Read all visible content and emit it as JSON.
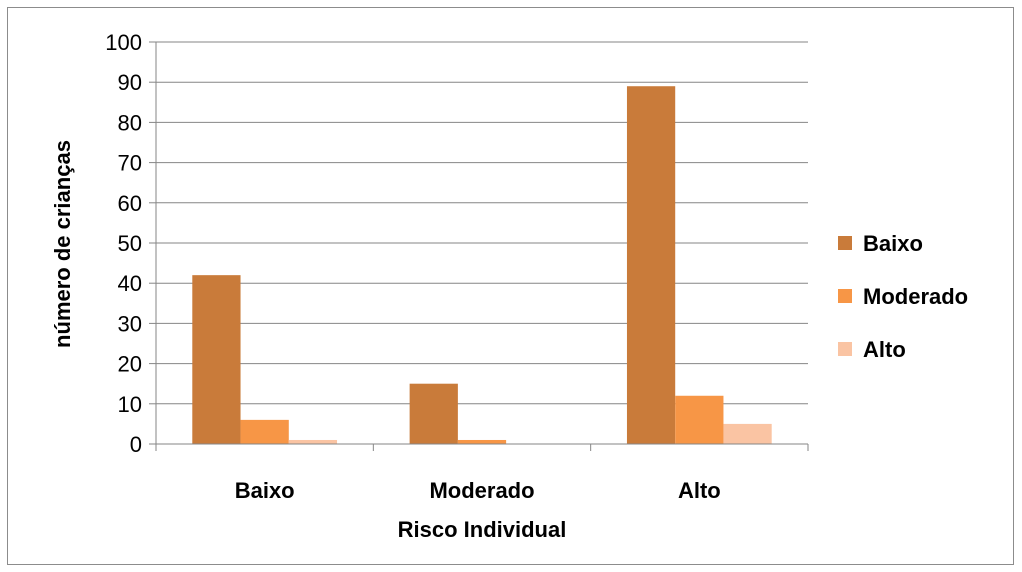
{
  "chart_data": {
    "type": "bar",
    "title": "",
    "xlabel": "Risco Individual",
    "ylabel": "número de crianças",
    "categories": [
      "Baixo",
      "Moderado",
      "Alto"
    ],
    "series": [
      {
        "name": "Baixo",
        "values": [
          42,
          15,
          89
        ],
        "color": "#C97B3A"
      },
      {
        "name": "Moderado",
        "values": [
          6,
          1,
          12
        ],
        "color": "#F79646"
      },
      {
        "name": "Alto",
        "values": [
          1,
          0,
          5
        ],
        "color": "#FAC4A3"
      }
    ],
    "ylim": [
      0,
      100
    ],
    "yticks": [
      0,
      10,
      20,
      30,
      40,
      50,
      60,
      70,
      80,
      90,
      100
    ],
    "grid": true,
    "legend_position": "right"
  },
  "colors": {
    "gridline": "#868686",
    "axis": "#868686"
  }
}
